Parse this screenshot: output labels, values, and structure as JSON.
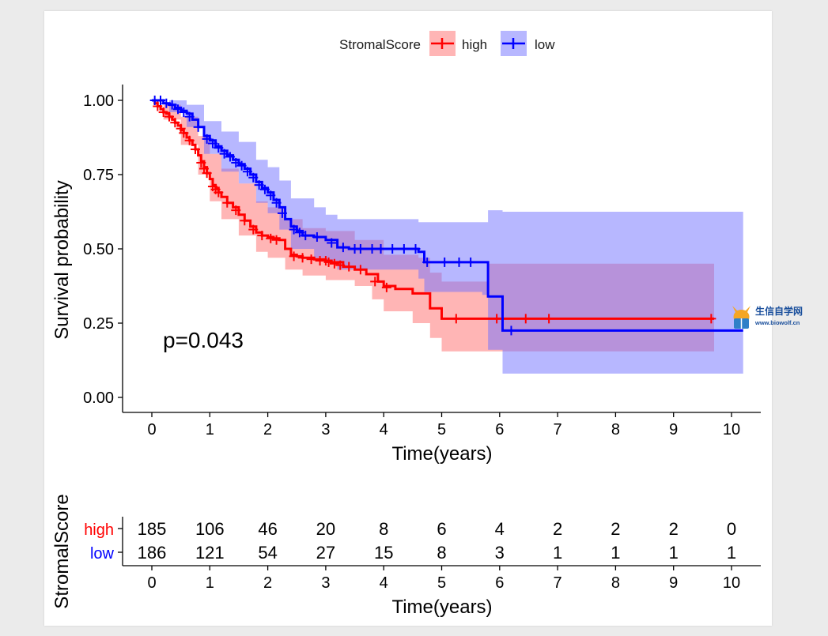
{
  "chart_data": {
    "type": "line",
    "subtype": "kaplan-meier",
    "xlabel": "Time(years)",
    "ylabel": "Survival probability",
    "xlim": [
      -0.45,
      10.45
    ],
    "ylim": [
      -0.05,
      1.05
    ],
    "xticks": [
      "0",
      "1",
      "2",
      "3",
      "4",
      "5",
      "6",
      "7",
      "8",
      "9",
      "10"
    ],
    "yticks": [
      "0.00",
      "0.25",
      "0.50",
      "0.75",
      "1.00"
    ],
    "grid": false,
    "pvalue_text": "p=0.043",
    "legend": {
      "title": "StromalScore",
      "position": "top",
      "entries": [
        "high",
        "low"
      ]
    },
    "series": [
      {
        "name": "high",
        "color": "#ff0000",
        "band_color": "#ff6b6b",
        "curve": [
          [
            0,
            1.0
          ],
          [
            0.05,
            0.99
          ],
          [
            0.1,
            0.98
          ],
          [
            0.15,
            0.97
          ],
          [
            0.2,
            0.96
          ],
          [
            0.25,
            0.955
          ],
          [
            0.3,
            0.945
          ],
          [
            0.35,
            0.935
          ],
          [
            0.4,
            0.925
          ],
          [
            0.45,
            0.915
          ],
          [
            0.5,
            0.9
          ],
          [
            0.55,
            0.89
          ],
          [
            0.6,
            0.875
          ],
          [
            0.65,
            0.865
          ],
          [
            0.7,
            0.85
          ],
          [
            0.75,
            0.835
          ],
          [
            0.8,
            0.815
          ],
          [
            0.85,
            0.795
          ],
          [
            0.9,
            0.775
          ],
          [
            0.95,
            0.755
          ],
          [
            1.0,
            0.735
          ],
          [
            1.05,
            0.715
          ],
          [
            1.1,
            0.705
          ],
          [
            1.15,
            0.69
          ],
          [
            1.2,
            0.675
          ],
          [
            1.3,
            0.655
          ],
          [
            1.4,
            0.64
          ],
          [
            1.5,
            0.615
          ],
          [
            1.6,
            0.595
          ],
          [
            1.7,
            0.575
          ],
          [
            1.8,
            0.555
          ],
          [
            1.9,
            0.545
          ],
          [
            2.0,
            0.54
          ],
          [
            2.1,
            0.535
          ],
          [
            2.2,
            0.53
          ],
          [
            2.3,
            0.5
          ],
          [
            2.4,
            0.48
          ],
          [
            2.5,
            0.475
          ],
          [
            2.6,
            0.47
          ],
          [
            2.8,
            0.465
          ],
          [
            3.0,
            0.46
          ],
          [
            3.1,
            0.455
          ],
          [
            3.3,
            0.44
          ],
          [
            3.5,
            0.43
          ],
          [
            3.7,
            0.415
          ],
          [
            3.9,
            0.39
          ],
          [
            4.0,
            0.375
          ],
          [
            4.2,
            0.365
          ],
          [
            4.5,
            0.35
          ],
          [
            4.6,
            0.35
          ],
          [
            4.8,
            0.3
          ],
          [
            5.0,
            0.265
          ],
          [
            5.5,
            0.265
          ],
          [
            6.0,
            0.265
          ],
          [
            9.7,
            0.265
          ]
        ],
        "upper": [
          [
            0,
            1.0
          ],
          [
            0.2,
            0.985
          ],
          [
            0.5,
            0.945
          ],
          [
            0.8,
            0.88
          ],
          [
            1.0,
            0.82
          ],
          [
            1.2,
            0.77
          ],
          [
            1.5,
            0.72
          ],
          [
            1.8,
            0.66
          ],
          [
            2.0,
            0.64
          ],
          [
            2.3,
            0.6
          ],
          [
            2.6,
            0.57
          ],
          [
            3.0,
            0.56
          ],
          [
            3.5,
            0.53
          ],
          [
            4.0,
            0.48
          ],
          [
            4.6,
            0.47
          ],
          [
            4.8,
            0.42
          ],
          [
            5.0,
            0.39
          ],
          [
            5.8,
            0.39
          ],
          [
            5.8,
            0.45
          ],
          [
            9.7,
            0.45
          ]
        ],
        "lower": [
          [
            0,
            1.0
          ],
          [
            0.2,
            0.935
          ],
          [
            0.5,
            0.85
          ],
          [
            0.8,
            0.75
          ],
          [
            1.0,
            0.66
          ],
          [
            1.2,
            0.6
          ],
          [
            1.5,
            0.545
          ],
          [
            1.8,
            0.49
          ],
          [
            2.0,
            0.47
          ],
          [
            2.3,
            0.43
          ],
          [
            2.6,
            0.41
          ],
          [
            3.0,
            0.395
          ],
          [
            3.5,
            0.375
          ],
          [
            3.8,
            0.33
          ],
          [
            4.0,
            0.29
          ],
          [
            4.5,
            0.25
          ],
          [
            4.8,
            0.2
          ],
          [
            5.0,
            0.155
          ],
          [
            5.8,
            0.155
          ],
          [
            9.7,
            0.155
          ]
        ],
        "censor": [
          [
            0.1,
            0.98
          ],
          [
            0.2,
            0.96
          ],
          [
            0.3,
            0.945
          ],
          [
            0.4,
            0.925
          ],
          [
            0.5,
            0.905
          ],
          [
            0.55,
            0.89
          ],
          [
            0.65,
            0.865
          ],
          [
            0.75,
            0.835
          ],
          [
            0.85,
            0.79
          ],
          [
            0.9,
            0.77
          ],
          [
            0.95,
            0.755
          ],
          [
            1.05,
            0.71
          ],
          [
            1.1,
            0.7
          ],
          [
            1.15,
            0.69
          ],
          [
            1.3,
            0.655
          ],
          [
            1.45,
            0.63
          ],
          [
            1.6,
            0.595
          ],
          [
            1.75,
            0.565
          ],
          [
            1.9,
            0.545
          ],
          [
            2.05,
            0.535
          ],
          [
            2.15,
            0.53
          ],
          [
            2.45,
            0.475
          ],
          [
            2.6,
            0.47
          ],
          [
            2.75,
            0.465
          ],
          [
            2.9,
            0.46
          ],
          [
            3.0,
            0.46
          ],
          [
            3.05,
            0.455
          ],
          [
            3.15,
            0.45
          ],
          [
            3.25,
            0.445
          ],
          [
            3.4,
            0.44
          ],
          [
            3.6,
            0.43
          ],
          [
            3.85,
            0.39
          ],
          [
            4.05,
            0.37
          ],
          [
            5.25,
            0.265
          ],
          [
            5.95,
            0.265
          ],
          [
            6.45,
            0.265
          ],
          [
            6.85,
            0.265
          ],
          [
            9.65,
            0.265
          ]
        ]
      },
      {
        "name": "low",
        "color": "#0000ff",
        "band_color": "#7070ff",
        "curve": [
          [
            0,
            1.0
          ],
          [
            0.1,
            1.0
          ],
          [
            0.2,
            0.99
          ],
          [
            0.3,
            0.985
          ],
          [
            0.4,
            0.975
          ],
          [
            0.5,
            0.965
          ],
          [
            0.6,
            0.955
          ],
          [
            0.7,
            0.935
          ],
          [
            0.8,
            0.91
          ],
          [
            0.9,
            0.88
          ],
          [
            1.0,
            0.865
          ],
          [
            1.1,
            0.845
          ],
          [
            1.2,
            0.83
          ],
          [
            1.3,
            0.815
          ],
          [
            1.4,
            0.8
          ],
          [
            1.5,
            0.785
          ],
          [
            1.6,
            0.77
          ],
          [
            1.7,
            0.75
          ],
          [
            1.8,
            0.725
          ],
          [
            1.9,
            0.705
          ],
          [
            2.0,
            0.69
          ],
          [
            2.1,
            0.665
          ],
          [
            2.2,
            0.64
          ],
          [
            2.3,
            0.6
          ],
          [
            2.4,
            0.575
          ],
          [
            2.5,
            0.56
          ],
          [
            2.6,
            0.545
          ],
          [
            2.8,
            0.54
          ],
          [
            3.0,
            0.53
          ],
          [
            3.2,
            0.505
          ],
          [
            3.4,
            0.5
          ],
          [
            3.7,
            0.5
          ],
          [
            4.0,
            0.5
          ],
          [
            4.5,
            0.5
          ],
          [
            4.6,
            0.49
          ],
          [
            4.7,
            0.455
          ],
          [
            5.0,
            0.455
          ],
          [
            5.6,
            0.455
          ],
          [
            5.8,
            0.34
          ],
          [
            6.05,
            0.225
          ],
          [
            10.2,
            0.225
          ]
        ],
        "upper": [
          [
            0,
            1.0
          ],
          [
            0.3,
            1.0
          ],
          [
            0.6,
            0.985
          ],
          [
            0.9,
            0.93
          ],
          [
            1.2,
            0.895
          ],
          [
            1.5,
            0.86
          ],
          [
            1.8,
            0.8
          ],
          [
            2.0,
            0.775
          ],
          [
            2.2,
            0.73
          ],
          [
            2.4,
            0.67
          ],
          [
            2.8,
            0.64
          ],
          [
            3.0,
            0.615
          ],
          [
            3.2,
            0.6
          ],
          [
            4.6,
            0.59
          ],
          [
            4.7,
            0.59
          ],
          [
            5.7,
            0.59
          ],
          [
            5.8,
            0.63
          ],
          [
            6.05,
            0.625
          ],
          [
            10.2,
            0.625
          ]
        ],
        "lower": [
          [
            0,
            1.0
          ],
          [
            0.3,
            0.96
          ],
          [
            0.6,
            0.91
          ],
          [
            0.9,
            0.82
          ],
          [
            1.2,
            0.76
          ],
          [
            1.5,
            0.72
          ],
          [
            1.8,
            0.655
          ],
          [
            2.0,
            0.62
          ],
          [
            2.2,
            0.565
          ],
          [
            2.4,
            0.5
          ],
          [
            2.8,
            0.47
          ],
          [
            3.0,
            0.46
          ],
          [
            3.2,
            0.43
          ],
          [
            4.6,
            0.4
          ],
          [
            4.7,
            0.355
          ],
          [
            5.7,
            0.345
          ],
          [
            5.8,
            0.16
          ],
          [
            6.05,
            0.08
          ],
          [
            10.2,
            0.08
          ]
        ],
        "censor": [
          [
            0.05,
            1.0
          ],
          [
            0.15,
            1.0
          ],
          [
            0.25,
            0.99
          ],
          [
            0.35,
            0.985
          ],
          [
            0.45,
            0.97
          ],
          [
            0.55,
            0.96
          ],
          [
            0.65,
            0.945
          ],
          [
            0.8,
            0.91
          ],
          [
            0.95,
            0.87
          ],
          [
            1.05,
            0.855
          ],
          [
            1.15,
            0.84
          ],
          [
            1.25,
            0.82
          ],
          [
            1.35,
            0.81
          ],
          [
            1.45,
            0.79
          ],
          [
            1.55,
            0.78
          ],
          [
            1.65,
            0.76
          ],
          [
            1.75,
            0.74
          ],
          [
            1.85,
            0.715
          ],
          [
            1.95,
            0.7
          ],
          [
            2.05,
            0.68
          ],
          [
            2.15,
            0.655
          ],
          [
            2.25,
            0.62
          ],
          [
            2.45,
            0.565
          ],
          [
            2.55,
            0.555
          ],
          [
            2.65,
            0.545
          ],
          [
            2.85,
            0.54
          ],
          [
            3.1,
            0.52
          ],
          [
            3.3,
            0.505
          ],
          [
            3.5,
            0.5
          ],
          [
            3.6,
            0.5
          ],
          [
            3.8,
            0.5
          ],
          [
            3.95,
            0.5
          ],
          [
            4.15,
            0.5
          ],
          [
            4.35,
            0.5
          ],
          [
            4.55,
            0.5
          ],
          [
            4.75,
            0.455
          ],
          [
            5.05,
            0.455
          ],
          [
            5.3,
            0.455
          ],
          [
            5.5,
            0.455
          ],
          [
            6.2,
            0.225
          ]
        ]
      }
    ],
    "risk_table": {
      "title": "StromalScore",
      "xlabel": "Time(years)",
      "times": [
        "0",
        "1",
        "2",
        "3",
        "4",
        "5",
        "6",
        "7",
        "8",
        "9",
        "10"
      ],
      "rows": [
        {
          "label": "high",
          "color": "#ff0000",
          "values": [
            "185",
            "106",
            "46",
            "20",
            "8",
            "6",
            "4",
            "2",
            "2",
            "2",
            "0"
          ]
        },
        {
          "label": "low",
          "color": "#0000ff",
          "values": [
            "186",
            "121",
            "54",
            "27",
            "15",
            "8",
            "3",
            "1",
            "1",
            "1",
            "1"
          ]
        }
      ]
    }
  },
  "watermark": {
    "name": "生信自学网",
    "url": "www.biowolf.cn"
  }
}
